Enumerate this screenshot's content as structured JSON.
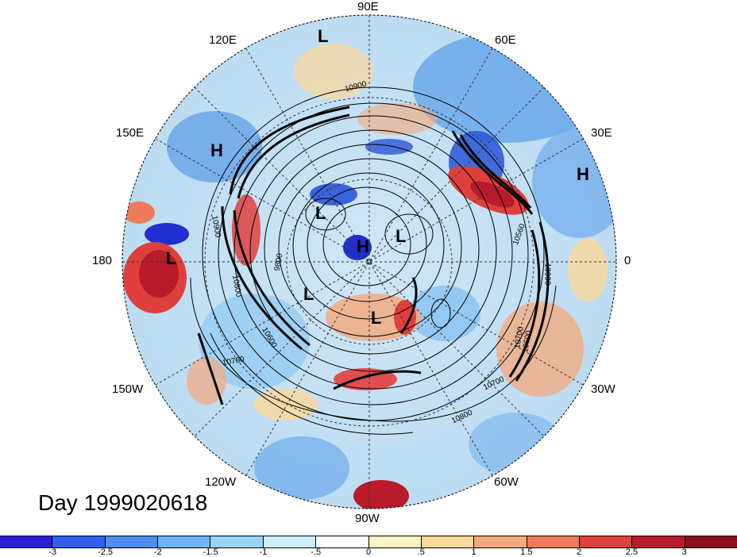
{
  "title": "Day 1999020618",
  "longitude_labels": [
    "90E",
    "120E",
    "60E",
    "150E",
    "30E",
    "180",
    "0",
    "150W",
    "30W",
    "120W",
    "60W",
    "90W"
  ],
  "systems": [
    "L",
    "H",
    "H",
    "L",
    "L",
    "H",
    "L",
    "L",
    "L"
  ],
  "contour_labels": [
    "10900",
    "10900",
    "10800",
    "10700",
    "10600",
    "10560",
    "10900",
    "10700",
    "10800",
    "10700",
    "9800",
    "10600"
  ],
  "colorbar": {
    "ticks": [
      "-3",
      "-2.5",
      "-2",
      "-1.5",
      "-1",
      "-.5",
      "0",
      ".5",
      "1",
      "1.5",
      "2",
      "2.5",
      "3"
    ],
    "colors": [
      "#2a1fd6",
      "#2f5ef0",
      "#4a8ff0",
      "#6cb5f5",
      "#98d4f8",
      "#cdeefc",
      "#ffffff",
      "#fdf3c4",
      "#fbd89a",
      "#f4a87a",
      "#ee7a5a",
      "#e0403c",
      "#b81b2a",
      "#8b0f1f"
    ]
  }
}
